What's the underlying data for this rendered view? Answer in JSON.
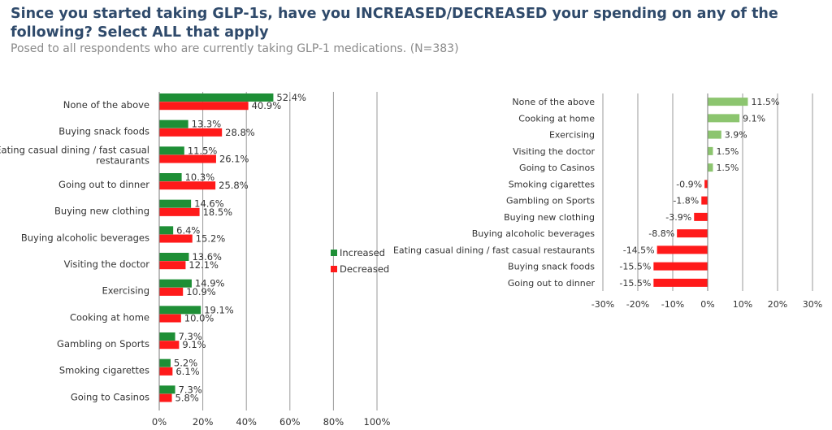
{
  "title": "Since you started taking GLP-1s, have you INCREASED/DECREASED your spending on any of the following? Select ALL that apply",
  "subtitle": "Posed to all respondents who are currently taking GLP-1 medications. (N=383)",
  "colors": {
    "increased": "#1e8f36",
    "decreased": "#ff1a1a",
    "net_positive": "#8cc56f",
    "net_negative": "#ff1a1a",
    "grid": "#9a9a9a",
    "text": "#333333"
  },
  "chart_data": [
    {
      "type": "bar",
      "orientation": "horizontal",
      "categories": [
        "None of the above",
        "Buying snack foods",
        "Eating casual dining / fast casual restaurants",
        "Going out to dinner",
        "Buying new clothing",
        "Buying alcoholic beverages",
        "Visiting the doctor",
        "Exercising",
        "Cooking at home",
        "Gambling on Sports",
        "Smoking cigarettes",
        "Going to Casinos"
      ],
      "series": [
        {
          "name": "Increased",
          "values": [
            52.4,
            13.3,
            11.5,
            10.3,
            14.6,
            6.4,
            13.6,
            14.9,
            19.1,
            7.3,
            5.2,
            7.3
          ],
          "labels": [
            "52.4%",
            "13.3%",
            "11.5%",
            "10.3%",
            "14.6%",
            "6.4%",
            "13.6%",
            "14.9%",
            "19.1%",
            "7.3%",
            "5.2%",
            "7.3%"
          ]
        },
        {
          "name": "Decreased",
          "values": [
            40.9,
            28.8,
            26.1,
            25.8,
            18.5,
            15.2,
            12.1,
            10.9,
            10.0,
            9.1,
            6.1,
            5.8
          ],
          "labels": [
            "40.9%",
            "28.8%",
            "26.1%",
            "25.8%",
            "18.5%",
            "15.2%",
            "12.1%",
            "10.9%",
            "10.0%",
            "9.1%",
            "6.1%",
            "5.8%"
          ]
        }
      ],
      "xlim": [
        0,
        100
      ],
      "xticks": [
        "0%",
        "20%",
        "40%",
        "60%",
        "80%",
        "100%"
      ],
      "grid": true,
      "legend": "right"
    },
    {
      "type": "bar",
      "orientation": "horizontal",
      "categories": [
        "None of the above",
        "Cooking at home",
        "Exercising",
        "Visiting the doctor",
        "Going to Casinos",
        "Smoking cigarettes",
        "Gambling on Sports",
        "Buying new clothing",
        "Buying alcoholic beverages",
        "Eating casual dining / fast casual restaurants",
        "Buying snack foods",
        "Going out to dinner"
      ],
      "values": [
        11.5,
        9.1,
        3.9,
        1.5,
        1.5,
        -0.9,
        -1.8,
        -3.9,
        -8.8,
        -14.5,
        -15.5,
        -15.5
      ],
      "labels": [
        "11.5%",
        "9.1%",
        "3.9%",
        "1.5%",
        "1.5%",
        "-0.9%",
        "-1.8%",
        "-3.9%",
        "-8.8%",
        "-14.5%",
        "-15.5%",
        "-15.5%"
      ],
      "xlim": [
        -30,
        30
      ],
      "xticks": [
        "-30%",
        "-20%",
        "-10%",
        "0%",
        "10%",
        "20%",
        "30%"
      ],
      "grid": true
    }
  ]
}
